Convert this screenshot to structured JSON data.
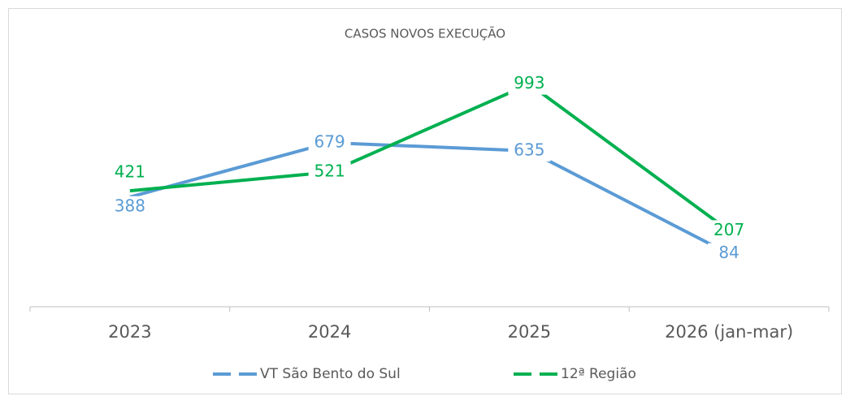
{
  "chart_data": {
    "type": "line",
    "title": "CASOS NOVOS EXECUÇÃO",
    "categories": [
      "2023",
      "2024",
      "2025",
      "2026 (jan-mar)"
    ],
    "series": [
      {
        "name": "VT São Bento do Sul",
        "color": "#5b9bd5",
        "values": [
          388,
          679,
          635,
          84
        ]
      },
      {
        "name": "12ª Região",
        "color": "#00b050",
        "values": [
          421,
          521,
          993,
          207
        ]
      }
    ],
    "ylim": [
      -200,
      1200
    ],
    "legend": "bottom"
  }
}
